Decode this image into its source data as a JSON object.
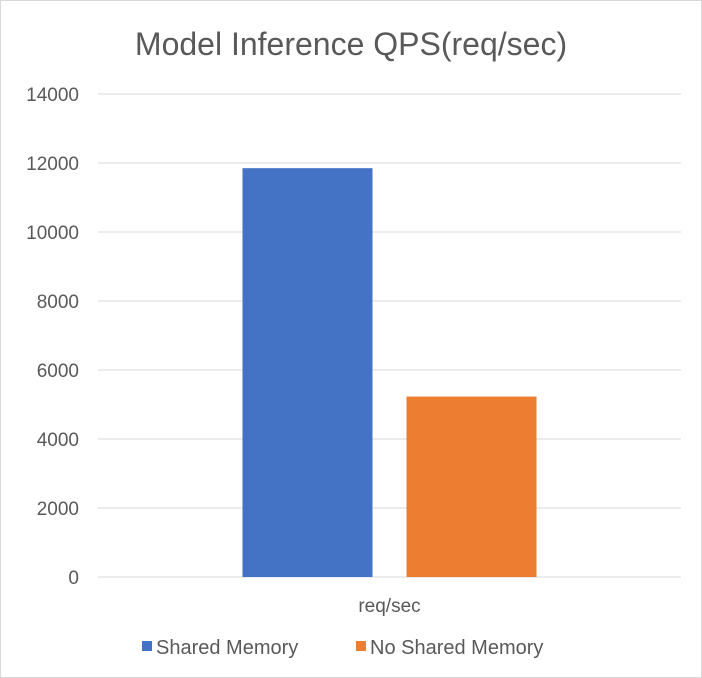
{
  "chart_data": {
    "type": "bar",
    "title": "Model Inference QPS(req/sec)",
    "categories": [
      "req/sec"
    ],
    "series": [
      {
        "name": "Shared Memory",
        "values": [
          11850
        ],
        "color": "#4472C4"
      },
      {
        "name": "No Shared Memory",
        "values": [
          5230
        ],
        "color": "#ED7D31"
      }
    ],
    "xlabel": "",
    "ylabel": "",
    "ylim": [
      0,
      14000
    ],
    "yticks": [
      0,
      2000,
      4000,
      6000,
      8000,
      10000,
      12000,
      14000
    ],
    "ytick_labels": [
      "0",
      "2000",
      "4000",
      "6000",
      "8000",
      "10000",
      "12000",
      "14000"
    ],
    "grid": true,
    "legend_position": "bottom",
    "colors": {
      "gridline": "#d9d9d9",
      "text": "#595959"
    }
  }
}
